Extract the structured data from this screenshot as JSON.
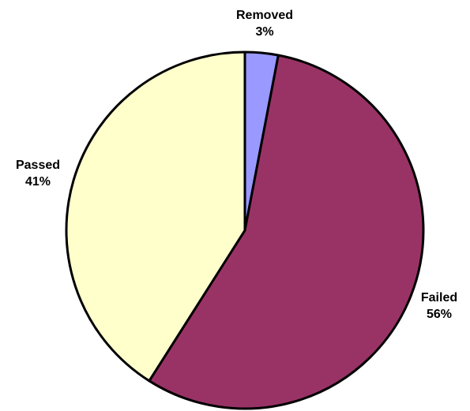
{
  "chart_data": {
    "type": "pie",
    "title": "",
    "start_angle": "12 o'clock",
    "direction": "clockwise",
    "legend": "none",
    "slices": [
      {
        "label": "Removed",
        "value": 3,
        "display": "3%",
        "color": "#9999ff"
      },
      {
        "label": "Failed",
        "value": 56,
        "display": "56%",
        "color": "#993366"
      },
      {
        "label": "Passed",
        "value": 41,
        "display": "41%",
        "color": "#ffffcc"
      }
    ]
  }
}
